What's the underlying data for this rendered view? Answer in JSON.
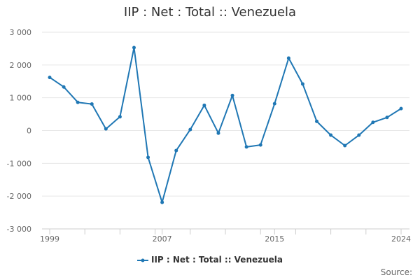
{
  "title": "IIP : Net : Total :: Venezuela",
  "legend": {
    "label": "IIP : Net : Total :: Venezuela"
  },
  "source_label": "Source:",
  "colors": {
    "series": "#1f77b4",
    "grid": "#e6e6e6",
    "axis_text": "#666666"
  },
  "chart_data": {
    "type": "line",
    "title": "IIP : Net : Total :: Venezuela",
    "xlabel": "",
    "ylabel": "",
    "x": [
      1999,
      2000,
      2001,
      2002,
      2003,
      2004,
      2005,
      2006,
      2007,
      2008,
      2009,
      2010,
      2011,
      2012,
      2013,
      2014,
      2015,
      2016,
      2017,
      2018,
      2019,
      2020,
      2021,
      2022,
      2023,
      2024
    ],
    "series": [
      {
        "name": "IIP : Net : Total :: Venezuela",
        "values": [
          1620,
          1330,
          860,
          810,
          50,
          420,
          2530,
          -820,
          -2190,
          -610,
          30,
          770,
          -80,
          1070,
          -500,
          -440,
          820,
          2210,
          1420,
          280,
          -140,
          -460,
          -140,
          250,
          400,
          670
        ]
      }
    ],
    "xlim": [
      1999,
      2024
    ],
    "ylim": [
      -3000,
      3000
    ],
    "y_ticks": [
      3000,
      2000,
      1000,
      0,
      -1000,
      -2000,
      -3000
    ],
    "y_tick_labels": [
      "3 000",
      "2 000",
      "1 000",
      "0",
      "-1 000",
      "-2 000",
      "-3 000"
    ],
    "x_tick_labels": [
      "1999",
      "2007",
      "2015",
      "2024"
    ],
    "x_tick_label_years": [
      1999,
      2007,
      2015,
      2024
    ],
    "grid": true,
    "legend_position": "bottom"
  }
}
